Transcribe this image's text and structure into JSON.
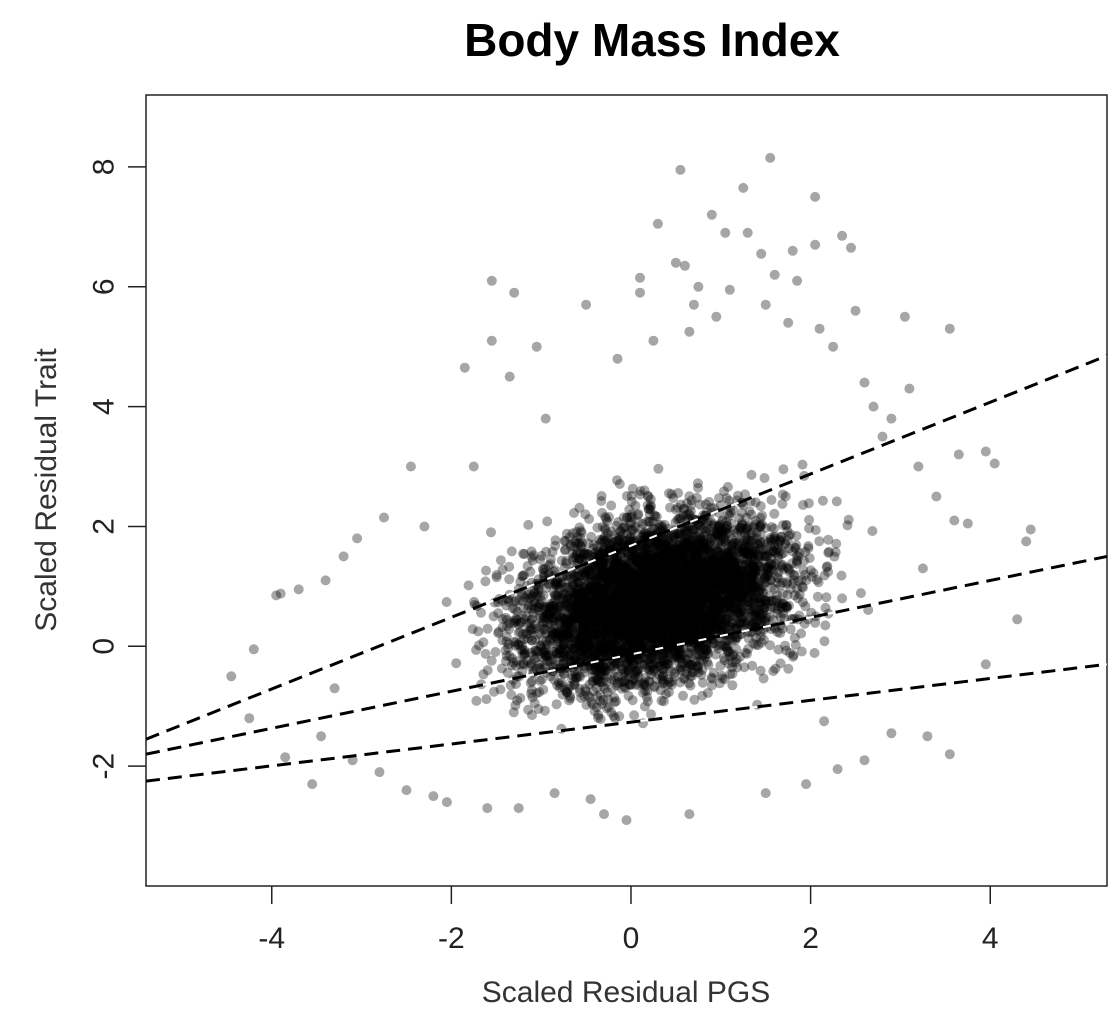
{
  "chart_data": {
    "type": "scatter",
    "title": "Body Mass Index",
    "xlabel": "Scaled Residual PGS",
    "ylabel": "Scaled Residual Trait",
    "xlim": [
      -5.4,
      5.3
    ],
    "ylim": [
      -4,
      9.2
    ],
    "x_ticks": [
      -4,
      -2,
      0,
      2,
      4
    ],
    "y_ticks": [
      -2,
      0,
      2,
      4,
      6,
      8
    ],
    "x_tick_labels": [
      "-4",
      "-2",
      "0",
      "2",
      "4"
    ],
    "y_tick_labels": [
      "-2",
      "0",
      "2",
      "4",
      "6",
      "8"
    ],
    "grid": false,
    "legend": "none",
    "point_color": "#000000",
    "point_opacity": 0.35,
    "lines_style": "dashed",
    "dense_cloud": {
      "x_range": [
        -3.2,
        2.2
      ],
      "y_range": [
        -2.2,
        4
      ],
      "center": [
        0.3,
        0.8
      ]
    },
    "fit_lines": [
      {
        "x": [
          -5.4,
          5.3
        ],
        "y": [
          -1.55,
          4.85
        ]
      },
      {
        "x": [
          -5.4,
          5.3
        ],
        "y": [
          -1.8,
          1.5
        ]
      },
      {
        "x": [
          -5.4,
          5.3
        ],
        "y": [
          -2.25,
          -0.3
        ]
      }
    ],
    "points": [
      [
        -4.45,
        -0.5
      ],
      [
        -4.2,
        -0.05
      ],
      [
        -4.25,
        -1.2
      ],
      [
        -3.95,
        0.85
      ],
      [
        -3.9,
        0.88
      ],
      [
        -3.85,
        -1.85
      ],
      [
        -3.7,
        0.95
      ],
      [
        -3.55,
        -2.3
      ],
      [
        -3.4,
        1.1
      ],
      [
        -3.3,
        -0.7
      ],
      [
        -3.2,
        1.5
      ],
      [
        -3.05,
        1.8
      ],
      [
        -2.75,
        2.15
      ],
      [
        -2.45,
        3.0
      ],
      [
        -2.3,
        2.0
      ],
      [
        -2.2,
        -2.5
      ],
      [
        -2.05,
        -2.6
      ],
      [
        -1.85,
        4.65
      ],
      [
        -1.75,
        3.0
      ],
      [
        -1.6,
        -2.7
      ],
      [
        -1.55,
        6.1
      ],
      [
        -1.55,
        5.1
      ],
      [
        -1.35,
        4.5
      ],
      [
        -1.3,
        5.9
      ],
      [
        -1.25,
        -2.7
      ],
      [
        -1.05,
        5.0
      ],
      [
        -0.95,
        3.8
      ],
      [
        -0.85,
        -2.45
      ],
      [
        -0.5,
        5.7
      ],
      [
        -0.45,
        -2.55
      ],
      [
        -0.3,
        -2.8
      ],
      [
        -0.15,
        4.8
      ],
      [
        -0.05,
        -2.9
      ],
      [
        0.1,
        5.9
      ],
      [
        0.1,
        6.15
      ],
      [
        0.25,
        5.1
      ],
      [
        0.3,
        7.05
      ],
      [
        0.5,
        6.4
      ],
      [
        0.55,
        7.95
      ],
      [
        0.6,
        6.35
      ],
      [
        0.65,
        5.25
      ],
      [
        0.65,
        -2.8
      ],
      [
        0.7,
        5.7
      ],
      [
        0.75,
        6.0
      ],
      [
        0.9,
        7.2
      ],
      [
        0.95,
        5.5
      ],
      [
        1.05,
        6.9
      ],
      [
        1.1,
        5.95
      ],
      [
        1.25,
        7.65
      ],
      [
        1.3,
        6.9
      ],
      [
        1.45,
        6.55
      ],
      [
        1.5,
        5.7
      ],
      [
        1.55,
        8.15
      ],
      [
        1.6,
        6.2
      ],
      [
        1.75,
        5.4
      ],
      [
        1.8,
        6.6
      ],
      [
        1.85,
        6.1
      ],
      [
        2.05,
        7.5
      ],
      [
        2.05,
        6.7
      ],
      [
        2.1,
        5.3
      ],
      [
        2.25,
        5.0
      ],
      [
        2.35,
        6.85
      ],
      [
        2.45,
        6.65
      ],
      [
        2.5,
        5.6
      ],
      [
        2.6,
        4.4
      ],
      [
        2.7,
        4.0
      ],
      [
        2.8,
        3.5
      ],
      [
        2.9,
        3.8
      ],
      [
        3.05,
        5.5
      ],
      [
        3.1,
        4.3
      ],
      [
        3.2,
        3.0
      ],
      [
        3.25,
        1.3
      ],
      [
        3.3,
        -1.5
      ],
      [
        3.4,
        2.5
      ],
      [
        3.55,
        5.3
      ],
      [
        3.6,
        2.1
      ],
      [
        3.65,
        3.2
      ],
      [
        3.75,
        2.05
      ],
      [
        3.95,
        3.25
      ],
      [
        3.95,
        -0.3
      ],
      [
        4.05,
        3.05
      ],
      [
        4.3,
        0.45
      ],
      [
        4.4,
        1.75
      ],
      [
        4.45,
        1.95
      ],
      [
        3.55,
        -1.8
      ],
      [
        2.9,
        -1.45
      ],
      [
        2.6,
        -1.9
      ],
      [
        2.3,
        -2.05
      ],
      [
        1.95,
        -2.3
      ],
      [
        1.5,
        -2.45
      ],
      [
        2.15,
        -1.25
      ],
      [
        -3.1,
        -1.9
      ],
      [
        -2.8,
        -2.1
      ],
      [
        -2.5,
        -2.4
      ],
      [
        -3.45,
        -1.5
      ]
    ]
  }
}
